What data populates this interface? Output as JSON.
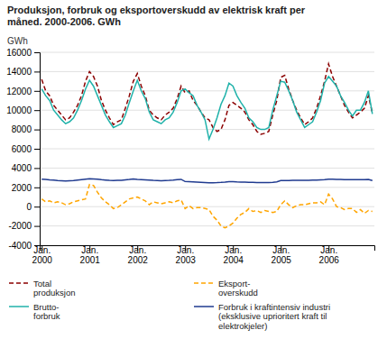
{
  "chart_data": {
    "type": "line",
    "title": "Produksjon, forbruk og eksportoverskudd av elektrisk kraft per\nmåned. 2000-2006. GWh",
    "ylabel": "GWh",
    "categories": [
      "Jan.\n2000",
      null,
      null,
      null,
      null,
      null,
      null,
      null,
      null,
      null,
      null,
      null,
      "Jan.\n2001",
      null,
      null,
      null,
      null,
      null,
      null,
      null,
      null,
      null,
      null,
      null,
      "Jan.\n2002",
      null,
      null,
      null,
      null,
      null,
      null,
      null,
      null,
      null,
      null,
      null,
      "Jan.\n2003",
      null,
      null,
      null,
      null,
      null,
      null,
      null,
      null,
      null,
      null,
      null,
      "Jan.\n2004",
      null,
      null,
      null,
      null,
      null,
      null,
      null,
      null,
      null,
      null,
      null,
      "Jan.\n2005",
      null,
      null,
      null,
      null,
      null,
      null,
      null,
      null,
      null,
      null,
      null,
      "Jan.\n2006",
      null,
      null,
      null,
      null,
      null,
      null,
      null,
      null,
      null,
      null,
      null
    ],
    "ylim": [
      -4000,
      16000
    ],
    "yticks": [
      -4000,
      -2000,
      0,
      2000,
      4000,
      6000,
      8000,
      10000,
      12000,
      14000,
      16000
    ],
    "grid": true,
    "legend": "bottom",
    "series": [
      {
        "name": "Total\nproduksjon",
        "color": "#8B0000",
        "line_style": "dashed",
        "values": [
          13200,
          12000,
          11500,
          10500,
          10000,
          9500,
          9000,
          9200,
          9800,
          10500,
          11500,
          13000,
          14000,
          13500,
          12500,
          11000,
          10000,
          9200,
          8500,
          8800,
          9000,
          10200,
          11500,
          13000,
          13800,
          12500,
          11500,
          10000,
          9500,
          9200,
          9000,
          9500,
          9800,
          10200,
          11200,
          12500,
          11800,
          12000,
          11000,
          10500,
          9800,
          9200,
          9000,
          8200,
          7800,
          8000,
          9000,
          10500,
          10800,
          10500,
          10200,
          9800,
          9000,
          8500,
          7800,
          7500,
          7600,
          7800,
          9500,
          11000,
          13400,
          13600,
          12200,
          11000,
          10000,
          9200,
          8500,
          8800,
          9200,
          10200,
          11500,
          13000,
          14800,
          13500,
          12500,
          11500,
          10500,
          9800,
          9200,
          9500,
          9800,
          10200,
          11500,
          9700
        ]
      },
      {
        "name": "Eksport-\noverskudd",
        "color": "#FFA500",
        "line_style": "dashed",
        "values": [
          800,
          500,
          600,
          400,
          500,
          400,
          200,
          300,
          500,
          600,
          700,
          800,
          2300,
          2200,
          1500,
          900,
          500,
          200,
          -200,
          -100,
          200,
          500,
          800,
          900,
          1000,
          800,
          600,
          200,
          500,
          400,
          300,
          400,
          500,
          400,
          600,
          700,
          -200,
          100,
          -200,
          -100,
          -100,
          -200,
          -300,
          -1000,
          -1400,
          -2000,
          -2200,
          -2000,
          -1700,
          -1200,
          -800,
          -600,
          -200,
          -500,
          -400,
          -600,
          -400,
          -500,
          -600,
          -500,
          200,
          600,
          200,
          -100,
          100,
          200,
          200,
          300,
          400,
          400,
          500,
          200,
          1300,
          800,
          0,
          -100,
          -300,
          -200,
          -200,
          -600,
          -300,
          -700,
          -400,
          -500
        ]
      },
      {
        "name": "Brutto-\nforbruk",
        "color": "#20B2AA",
        "line_style": "solid",
        "values": [
          12200,
          11500,
          11000,
          10000,
          9500,
          9000,
          8600,
          8800,
          9200,
          10000,
          11000,
          12200,
          13100,
          12500,
          11500,
          10500,
          9500,
          8800,
          8200,
          8400,
          8600,
          9500,
          10800,
          12000,
          13100,
          12000,
          11200,
          9800,
          9000,
          8800,
          8600,
          9000,
          9200,
          9800,
          10800,
          12000,
          12200,
          11800,
          11500,
          10500,
          9800,
          9000,
          7000,
          8000,
          9200,
          10600,
          11500,
          12800,
          12500,
          11500,
          10800,
          10200,
          9200,
          8800,
          8200,
          8000,
          8000,
          8200,
          10000,
          11500,
          13000,
          12900,
          12000,
          11000,
          9800,
          9000,
          8200,
          8500,
          8800,
          9800,
          11000,
          12800,
          13500,
          13000,
          12500,
          11500,
          10800,
          10000,
          9400,
          10000,
          10000,
          10800,
          12000,
          9600
        ]
      },
      {
        "name": "Forbruk i kraftintensiv industri\n(eksklusive uprioritert kraft til\nelektrokjeler)",
        "color": "#1F3A8F",
        "line_style": "solid",
        "values": [
          2850,
          2820,
          2780,
          2750,
          2700,
          2680,
          2650,
          2680,
          2700,
          2750,
          2800,
          2850,
          2900,
          2880,
          2850,
          2800,
          2760,
          2720,
          2700,
          2720,
          2740,
          2780,
          2820,
          2870,
          2820,
          2800,
          2780,
          2750,
          2720,
          2700,
          2680,
          2700,
          2720,
          2750,
          2790,
          2830,
          2600,
          2580,
          2560,
          2540,
          2520,
          2500,
          2480,
          2480,
          2490,
          2510,
          2540,
          2580,
          2580,
          2560,
          2550,
          2540,
          2520,
          2510,
          2500,
          2490,
          2490,
          2500,
          2520,
          2560,
          2700,
          2700,
          2710,
          2720,
          2720,
          2720,
          2720,
          2730,
          2750,
          2760,
          2780,
          2800,
          2850,
          2840,
          2830,
          2820,
          2810,
          2800,
          2790,
          2790,
          2800,
          2810,
          2820,
          2700
        ]
      }
    ]
  }
}
